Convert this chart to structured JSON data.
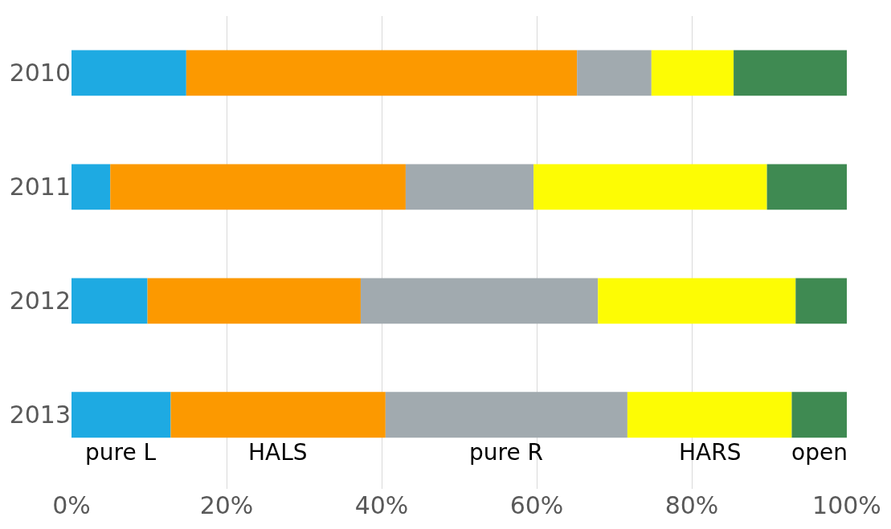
{
  "chart_data": {
    "type": "bar",
    "orientation": "horizontal",
    "stacked": true,
    "categories": [
      "2010",
      "2011",
      "2012",
      "2013"
    ],
    "series": [
      {
        "name": "pure L",
        "color": "#1eaae2",
        "values": [
          14.8,
          5.0,
          9.8,
          12.8
        ]
      },
      {
        "name": "HALS",
        "color": "#fc9900",
        "values": [
          50.4,
          38.1,
          27.5,
          27.7
        ]
      },
      {
        "name": "pure R",
        "color": "#a1aaaf",
        "values": [
          9.6,
          16.5,
          30.6,
          31.2
        ]
      },
      {
        "name": "HARS",
        "color": "#fdfc04",
        "values": [
          10.6,
          30.1,
          25.5,
          21.2
        ]
      },
      {
        "name": "open",
        "color": "#3f8a52",
        "values": [
          14.6,
          10.3,
          6.6,
          7.1
        ]
      }
    ],
    "xlim": [
      0,
      100
    ],
    "xticks": [
      {
        "value": 0,
        "label": "0%"
      },
      {
        "value": 20,
        "label": "20%"
      },
      {
        "value": 40,
        "label": "40%"
      },
      {
        "value": 60,
        "label": "60%"
      },
      {
        "value": 80,
        "label": "80%"
      },
      {
        "value": 100,
        "label": "100%"
      }
    ],
    "grid": "x",
    "legend": false
  }
}
